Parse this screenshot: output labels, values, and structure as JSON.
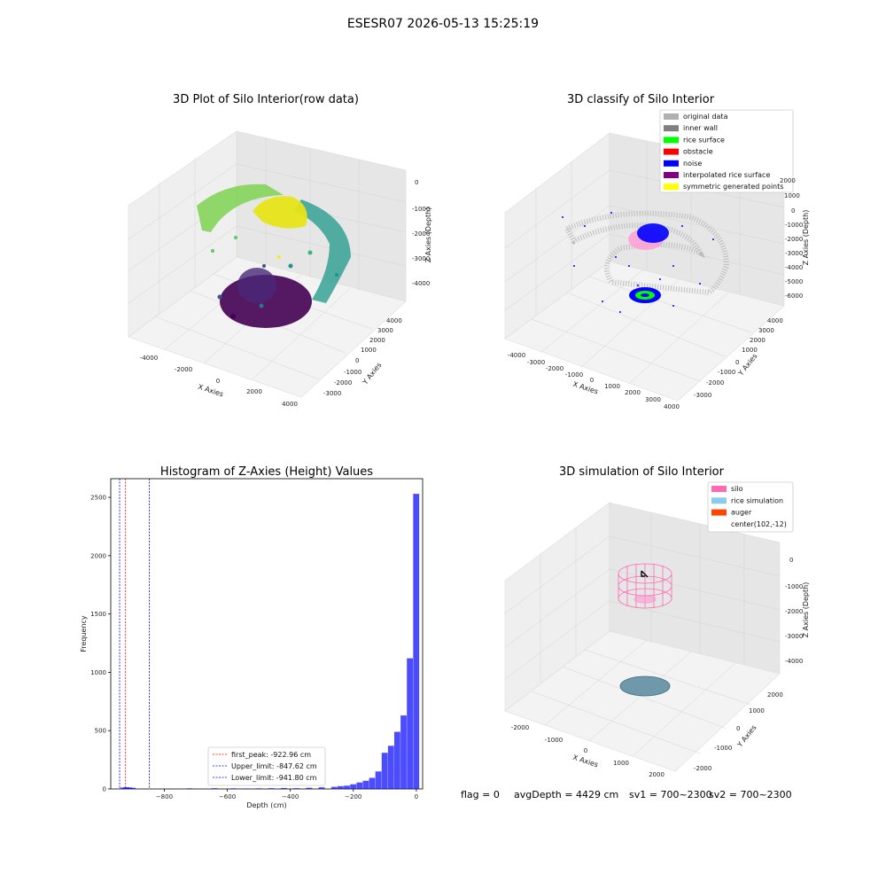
{
  "page": {
    "title": "ESESR07 2026-05-13 15:25:19",
    "status": {
      "flag": "flag = 0",
      "avg_depth": "avgDepth = 4429 cm",
      "sv1": "sv1 = 700~2300",
      "sv2": "sv2 = 700~2300"
    }
  },
  "chart_data": [
    {
      "type": "scatter",
      "title": "3D Plot of Silo Interior(row data)",
      "xlabel": "X Axies",
      "ylabel": "Y Axies",
      "zlabel": "Z Axies (Depth)",
      "x_ticks": [
        "-4000",
        "-2000",
        "0",
        "2000",
        "4000"
      ],
      "y_ticks": [
        "-3000",
        "-2000",
        "-1000",
        "0",
        "1000",
        "2000",
        "3000",
        "4000"
      ],
      "z_ticks": [
        "0",
        "-1000",
        "-2000",
        "-3000",
        "-4000"
      ],
      "colormap": "viridis"
    },
    {
      "type": "scatter",
      "title": "3D classify of Silo Interior",
      "xlabel": "X Axies",
      "ylabel": "Y Axies",
      "zlabel": "Z Axies (Depth)",
      "x_ticks": [
        "-4000",
        "-3000",
        "-2000",
        "-1000",
        "0",
        "1000",
        "2000",
        "3000",
        "4000"
      ],
      "y_ticks": [
        "-3000",
        "-2000",
        "-1000",
        "0",
        "1000",
        "2000",
        "3000",
        "4000"
      ],
      "z_ticks": [
        "2000",
        "1000",
        "0",
        "-1000",
        "-2000",
        "-3000",
        "-4000",
        "-5000",
        "-6000"
      ],
      "legend": [
        {
          "label": "original data",
          "color": "#b0b0b0"
        },
        {
          "label": "inner wall",
          "color": "#808080"
        },
        {
          "label": "rice surface",
          "color": "#00ff00"
        },
        {
          "label": "obstacle",
          "color": "#ff0000"
        },
        {
          "label": "noise",
          "color": "#0000ff"
        },
        {
          "label": "interpolated rice surface",
          "color": "#800080"
        },
        {
          "label": "symmetric generated points",
          "color": "#ffff00"
        }
      ]
    },
    {
      "type": "bar",
      "title": "Histogram of Z-Axies (Height) Values",
      "xlabel": "Depth (cm)",
      "ylabel": "Frequency",
      "xlim": [
        -970,
        20
      ],
      "ylim": [
        0,
        2660
      ],
      "x_ticks": [
        -800,
        -600,
        -400,
        -200,
        0
      ],
      "y_ticks": [
        0,
        500,
        1000,
        1500,
        2000,
        2500
      ],
      "bar_color": "#0000ff",
      "bins": [
        {
          "x": -930,
          "count": 12
        },
        {
          "x": -920,
          "count": 14
        },
        {
          "x": -910,
          "count": 12
        },
        {
          "x": -900,
          "count": 10
        },
        {
          "x": -720,
          "count": 5
        },
        {
          "x": -640,
          "count": 6
        },
        {
          "x": -580,
          "count": 5
        },
        {
          "x": -540,
          "count": 4
        },
        {
          "x": -500,
          "count": 5
        },
        {
          "x": -460,
          "count": 6
        },
        {
          "x": -420,
          "count": 8
        },
        {
          "x": -380,
          "count": 6
        },
        {
          "x": -340,
          "count": 10
        },
        {
          "x": -300,
          "count": 14
        },
        {
          "x": -260,
          "count": 18
        },
        {
          "x": -240,
          "count": 24
        },
        {
          "x": -220,
          "count": 28
        },
        {
          "x": -200,
          "count": 40
        },
        {
          "x": -180,
          "count": 55
        },
        {
          "x": -160,
          "count": 70
        },
        {
          "x": -140,
          "count": 95
        },
        {
          "x": -120,
          "count": 150
        },
        {
          "x": -100,
          "count": 310
        },
        {
          "x": -80,
          "count": 370
        },
        {
          "x": -60,
          "count": 490
        },
        {
          "x": -40,
          "count": 630
        },
        {
          "x": -20,
          "count": 1120
        },
        {
          "x": 0,
          "count": 2530
        }
      ],
      "bin_width": 20,
      "vlines": [
        {
          "x": -922.96,
          "color": "#ff0000",
          "label": "first_peak: -922.96 cm"
        },
        {
          "x": -847.62,
          "color": "#0000ff",
          "label": "Upper_limit: -847.62 cm"
        },
        {
          "x": -941.8,
          "color": "#0000ff",
          "label": "Lower_limit: -941.80 cm"
        }
      ]
    },
    {
      "type": "scatter",
      "title": "3D simulation of Silo Interior",
      "xlabel": "X Axies",
      "ylabel": "Y Axies",
      "zlabel": "Z Axies (Depth)",
      "x_ticks": [
        "-2000",
        "-1000",
        "0",
        "1000",
        "2000"
      ],
      "y_ticks": [
        "-2000",
        "-1000",
        "0",
        "1000",
        "2000"
      ],
      "z_ticks": [
        "0",
        "-1000",
        "-2000",
        "-3000",
        "-4000"
      ],
      "legend": [
        {
          "label": "silo",
          "color": "#ff69b4"
        },
        {
          "label": "rice simulation",
          "color": "#87ceeb"
        },
        {
          "label": "auger",
          "color": "#ff4500"
        },
        {
          "label": "center(102,-12)",
          "color": ""
        }
      ]
    }
  ]
}
